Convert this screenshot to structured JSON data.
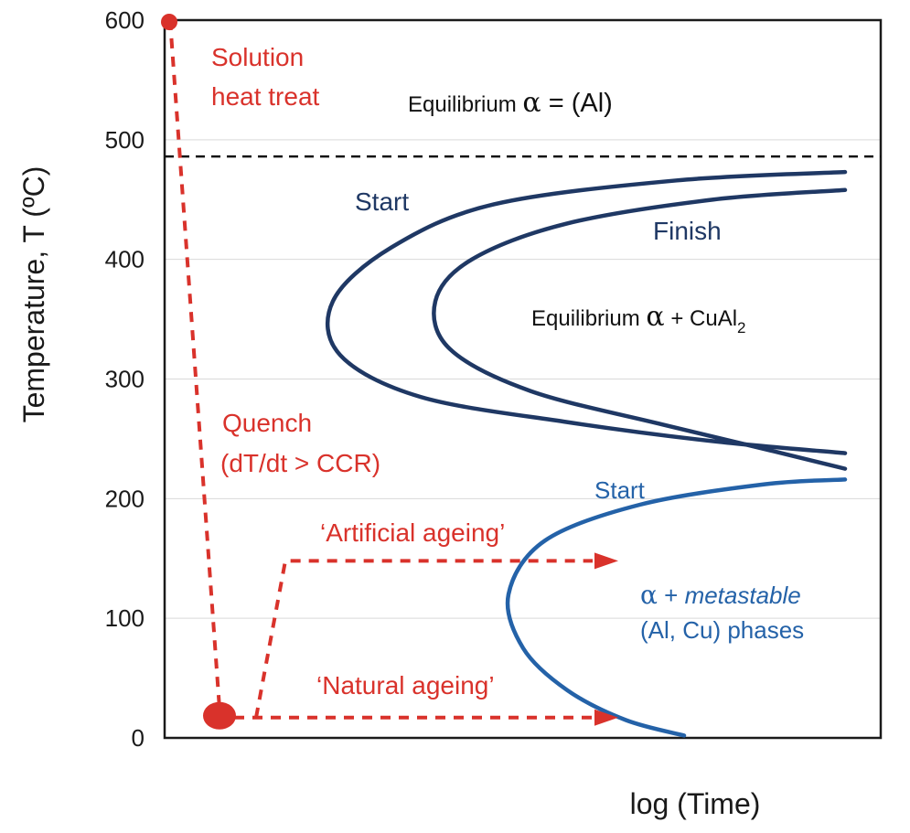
{
  "chart_data": {
    "type": "line",
    "title": "",
    "xlabel": "log (Time)",
    "ylabel": "Temperature, T  (ºC)",
    "ylim": [
      0,
      600
    ],
    "yticks": [
      "0",
      "100",
      "200",
      "300",
      "400",
      "500",
      "600"
    ],
    "xticks": [],
    "grid": true,
    "solvus_temperature": 486,
    "regions": {
      "top": {
        "prefix": "Equilibrium ",
        "greek": "α",
        "suffix": " = (Al)"
      },
      "middle": {
        "prefix": "Equilibrium ",
        "greek": "α",
        "suffix": " + CuAl",
        "subscript": "2"
      },
      "bottom_line1_greek": "α",
      "bottom_line1_plus": " + ",
      "bottom_line1_italic": "metastable",
      "bottom_line2": "(Al, Cu) phases"
    },
    "curve_labels": {
      "equilibrium_start": "Start",
      "equilibrium_finish": "Finish",
      "metastable_start": "Start"
    },
    "process_labels": {
      "solution_line1": "Solution",
      "solution_line2": "heat treat",
      "quench_line1": "Quench",
      "quench_line2": "(dT/dt > CCR)",
      "artificial": "‘Artificial ageing’",
      "natural": "‘Natural ageing’"
    },
    "series": [
      {
        "name": "Start",
        "x": [
          9.3,
          7.0,
          4.5,
          3.1,
          2.3,
          2.4,
          3.5,
          5.5,
          7.5,
          9.3
        ],
        "y": [
          473,
          466,
          446,
          410,
          365,
          320,
          285,
          264,
          248,
          238
        ]
      },
      {
        "name": "Finish",
        "x": [
          9.3,
          7.5,
          5.5,
          4.2,
          3.7,
          3.9,
          5.0,
          6.8,
          8.3,
          9.3
        ],
        "y": [
          458,
          450,
          430,
          400,
          365,
          325,
          290,
          262,
          240,
          225
        ]
      },
      {
        "name": "Start",
        "x": [
          9.3,
          8.2,
          6.5,
          5.2,
          4.7,
          4.9,
          5.5,
          6.3,
          7.1
        ],
        "y": [
          216,
          212,
          195,
          165,
          120,
          75,
          40,
          15,
          2
        ]
      }
    ],
    "process_path": {
      "solution_point": {
        "x": 0.0,
        "y": 600
      },
      "quench_end": {
        "x": 0.5,
        "y": 17
      },
      "artificial_path": {
        "x": [
          1.0,
          1.4,
          5.6
        ],
        "y": [
          17,
          148,
          148
        ]
      },
      "natural_path": {
        "x": [
          0.7,
          5.6
        ],
        "y": [
          17,
          17
        ]
      }
    },
    "colors": {
      "process": "#d9322b",
      "equilibrium_curves": "#1f3864",
      "metastable_curve": "#2462a8",
      "solvus": "#111111",
      "grid": "#d9d9d9"
    }
  }
}
